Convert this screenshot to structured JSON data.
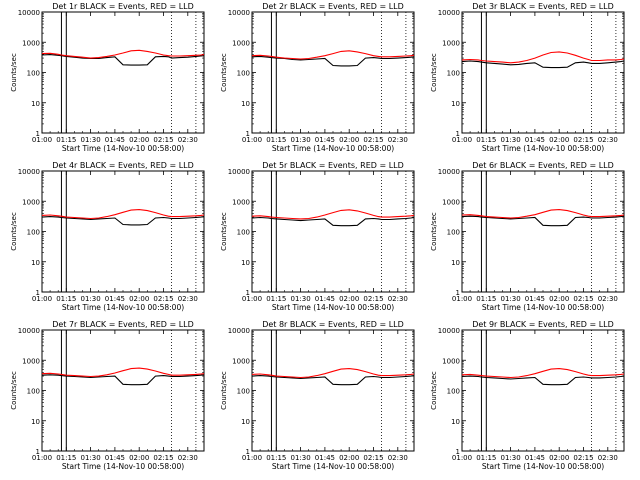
{
  "panel_titles": [
    "Det 1r BLACK = Events, RED = LLD",
    "Det 2r BLACK = Events, RED = LLD",
    "Det 3r BLACK = Events, RED = LLD",
    "Det 4r BLACK = Events, RED = LLD",
    "Det 5r BLACK = Events, RED = LLD",
    "Det 6r BLACK = Events, RED = LLD",
    "Det 7r BLACK = Events, RED = LLD",
    "Det 8r BLACK = Events, RED = LLD",
    "Det 9r BLACK = Events, RED = LLD"
  ],
  "xlabel": "Start Time (14-Nov-10 00:58:00)",
  "ylabel": "Counts/sec",
  "colors": {
    "events": "#000000",
    "lld": "#ff0000",
    "axes": "#000000"
  },
  "chart_data": {
    "type": "line",
    "layout": "3x3 grid",
    "x_unit": "minutes since 01:00",
    "xlim": [
      0,
      100
    ],
    "x_ticks": [
      0,
      15,
      30,
      45,
      60,
      75,
      90
    ],
    "x_tick_labels": [
      "01:00",
      "01:15",
      "01:30",
      "01:45",
      "02:00",
      "02:15",
      "02:30"
    ],
    "yscale": "log",
    "ylim": [
      1,
      10000
    ],
    "y_ticks": [
      1,
      10,
      100,
      1000,
      10000
    ],
    "y_tick_labels": [
      "1",
      "10",
      "100",
      "1000",
      "10000"
    ],
    "vertical_lines_solid": [
      12,
      15
    ],
    "vertical_lines_dotted": [
      80,
      95
    ],
    "x": [
      0,
      5,
      10,
      12,
      15,
      20,
      25,
      30,
      35,
      40,
      45,
      50,
      55,
      60,
      65,
      70,
      75,
      78,
      80,
      85,
      90,
      95,
      98,
      100
    ],
    "panels": [
      {
        "detector": "1r",
        "series": [
          {
            "name": "Events",
            "values": [
              380,
              390,
              370,
              360,
              340,
              320,
              300,
              290,
              290,
              310,
              330,
              180,
              175,
              175,
              180,
              330,
              340,
              330,
              300,
              310,
              320,
              340,
              350,
              360
            ]
          },
          {
            "name": "LLD",
            "values": [
              420,
              430,
              400,
              380,
              360,
              340,
              320,
              300,
              310,
              340,
              380,
              440,
              520,
              540,
              500,
              440,
              380,
              360,
              350,
              350,
              360,
              370,
              380,
              390
            ]
          }
        ]
      },
      {
        "detector": "2r",
        "series": [
          {
            "name": "Events",
            "values": [
              330,
              340,
              320,
              310,
              300,
              290,
              270,
              260,
              270,
              280,
              290,
              170,
              165,
              165,
              170,
              300,
              310,
              300,
              290,
              290,
              300,
              310,
              320,
              330
            ]
          },
          {
            "name": "LLD",
            "values": [
              360,
              370,
              350,
              340,
              320,
              300,
              290,
              280,
              290,
              320,
              360,
              420,
              500,
              520,
              480,
              420,
              360,
              340,
              330,
              330,
              340,
              350,
              360,
              370
            ]
          }
        ]
      },
      {
        "detector": "3r",
        "series": [
          {
            "name": "Events",
            "values": [
              230,
              240,
              230,
              220,
              210,
              200,
              190,
              180,
              185,
              200,
              210,
              150,
              145,
              145,
              150,
              210,
              220,
              210,
              200,
              200,
              210,
              220,
              230,
              240
            ]
          },
          {
            "name": "LLD",
            "values": [
              260,
              270,
              260,
              250,
              240,
              230,
              220,
              210,
              220,
              250,
              300,
              380,
              460,
              480,
              440,
              370,
              300,
              270,
              250,
              250,
              260,
              260,
              270,
              280
            ]
          }
        ]
      },
      {
        "detector": "4r",
        "series": [
          {
            "name": "Events",
            "values": [
              300,
              310,
              300,
              290,
              280,
              270,
              260,
              250,
              260,
              270,
              280,
              170,
              165,
              165,
              170,
              280,
              290,
              280,
              270,
              270,
              280,
              290,
              300,
              310
            ]
          },
          {
            "name": "LLD",
            "values": [
              340,
              350,
              330,
              320,
              300,
              290,
              280,
              270,
              280,
              310,
              360,
              430,
              510,
              530,
              490,
              420,
              350,
              320,
              310,
              310,
              320,
              330,
              340,
              350
            ]
          }
        ]
      },
      {
        "detector": "5r",
        "series": [
          {
            "name": "Events",
            "values": [
              280,
              290,
              280,
              270,
              260,
              250,
              240,
              230,
              240,
              250,
              260,
              160,
              155,
              155,
              160,
              260,
              270,
              260,
              250,
              250,
              260,
              270,
              280,
              290
            ]
          },
          {
            "name": "LLD",
            "values": [
              320,
              330,
              310,
              300,
              290,
              280,
              270,
              260,
              270,
              300,
              350,
              420,
              500,
              520,
              480,
              410,
              340,
              310,
              300,
              300,
              310,
              320,
              330,
              340
            ]
          }
        ]
      },
      {
        "detector": "6r",
        "series": [
          {
            "name": "Events",
            "values": [
              310,
              320,
              310,
              300,
              290,
              280,
              270,
              260,
              270,
              280,
              290,
              160,
              155,
              155,
              160,
              290,
              300,
              290,
              280,
              280,
              290,
              300,
              310,
              320
            ]
          },
          {
            "name": "LLD",
            "values": [
              350,
              360,
              340,
              330,
              310,
              300,
              290,
              280,
              290,
              320,
              360,
              430,
              510,
              530,
              490,
              420,
              350,
              320,
              310,
              310,
              320,
              330,
              340,
              350
            ]
          }
        ]
      },
      {
        "detector": "7r",
        "series": [
          {
            "name": "Events",
            "values": [
              320,
              330,
              320,
              310,
              300,
              290,
              280,
              270,
              280,
              290,
              300,
              160,
              155,
              155,
              160,
              300,
              310,
              300,
              290,
              290,
              300,
              310,
              320,
              330
            ]
          },
          {
            "name": "LLD",
            "values": [
              360,
              370,
              350,
              340,
              320,
              310,
              300,
              290,
              300,
              330,
              380,
              450,
              530,
              550,
              510,
              440,
              370,
              340,
              320,
              320,
              330,
              340,
              350,
              360
            ]
          }
        ]
      },
      {
        "detector": "8r",
        "series": [
          {
            "name": "Events",
            "values": [
              300,
              310,
              300,
              290,
              280,
              270,
              260,
              250,
              260,
              270,
              280,
              160,
              155,
              155,
              160,
              280,
              290,
              280,
              270,
              270,
              280,
              290,
              300,
              310
            ]
          },
          {
            "name": "LLD",
            "values": [
              340,
              350,
              330,
              320,
              300,
              290,
              280,
              270,
              280,
              310,
              360,
              430,
              510,
              530,
              490,
              420,
              350,
              320,
              310,
              310,
              320,
              330,
              340,
              350
            ]
          }
        ]
      },
      {
        "detector": "9r",
        "series": [
          {
            "name": "Events",
            "values": [
              290,
              300,
              290,
              280,
              270,
              260,
              250,
              240,
              250,
              260,
              270,
              160,
              155,
              155,
              160,
              270,
              280,
              270,
              260,
              260,
              270,
              280,
              290,
              300
            ]
          },
          {
            "name": "LLD",
            "values": [
              330,
              340,
              320,
              310,
              300,
              290,
              280,
              270,
              280,
              310,
              360,
              430,
              510,
              530,
              490,
              420,
              350,
              320,
              310,
              310,
              320,
              330,
              340,
              350
            ]
          }
        ]
      }
    ]
  }
}
